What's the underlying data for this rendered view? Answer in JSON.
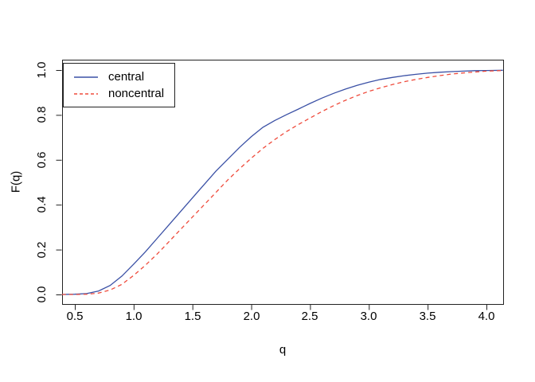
{
  "figure": {
    "background": "#ffffff",
    "frame_color": "#222222"
  },
  "chart_data": {
    "type": "line",
    "xlabel": "q",
    "ylabel": "F(q)",
    "xlim": [
      0.39,
      4.14
    ],
    "ylim": [
      -0.04,
      1.05
    ],
    "grid": false,
    "x_ticks": [
      0.5,
      1.0,
      1.5,
      2.0,
      2.5,
      3.0,
      3.5,
      4.0
    ],
    "x_tick_labels": [
      "0.5",
      "1.0",
      "1.5",
      "2.0",
      "2.5",
      "3.0",
      "3.5",
      "4.0"
    ],
    "y_ticks": [
      0.0,
      0.2,
      0.4,
      0.6,
      0.8,
      1.0
    ],
    "y_tick_labels": [
      "0.0",
      "0.2",
      "0.4",
      "0.6",
      "0.8",
      "1.0"
    ],
    "legend": {
      "position": "top-left",
      "entries": [
        {
          "label": "central",
          "color": "#3a50a5",
          "style": "solid"
        },
        {
          "label": "noncentral",
          "color": "#ef4b3c",
          "style": "dashed"
        }
      ]
    },
    "x": [
      0.39,
      0.5,
      0.6,
      0.7,
      0.8,
      0.9,
      1.0,
      1.1,
      1.2,
      1.3,
      1.4,
      1.5,
      1.6,
      1.7,
      1.8,
      1.9,
      2.0,
      2.1,
      2.2,
      2.3,
      2.4,
      2.5,
      2.6,
      2.7,
      2.8,
      2.9,
      3.0,
      3.1,
      3.2,
      3.3,
      3.4,
      3.5,
      3.6,
      3.7,
      3.8,
      3.9,
      4.0,
      4.14
    ],
    "series": [
      {
        "name": "central",
        "color": "#3a50a5",
        "style": "solid",
        "values": [
          0,
          0.001,
          0.004,
          0.015,
          0.04,
          0.082,
          0.135,
          0.19,
          0.25,
          0.31,
          0.37,
          0.43,
          0.49,
          0.55,
          0.602,
          0.655,
          0.703,
          0.745,
          0.775,
          0.801,
          0.826,
          0.851,
          0.875,
          0.896,
          0.915,
          0.932,
          0.946,
          0.958,
          0.967,
          0.975,
          0.981,
          0.986,
          0.99,
          0.993,
          0.995,
          0.997,
          0.998,
          0.999
        ]
      },
      {
        "name": "noncentral",
        "color": "#ef4b3c",
        "style": "dashed",
        "values": [
          0,
          0,
          0.001,
          0.006,
          0.02,
          0.045,
          0.085,
          0.13,
          0.18,
          0.235,
          0.29,
          0.345,
          0.4,
          0.455,
          0.51,
          0.56,
          0.607,
          0.651,
          0.69,
          0.726,
          0.757,
          0.786,
          0.815,
          0.841,
          0.865,
          0.886,
          0.905,
          0.921,
          0.935,
          0.948,
          0.958,
          0.967,
          0.975,
          0.982,
          0.987,
          0.991,
          0.995,
          0.998
        ]
      }
    ]
  }
}
